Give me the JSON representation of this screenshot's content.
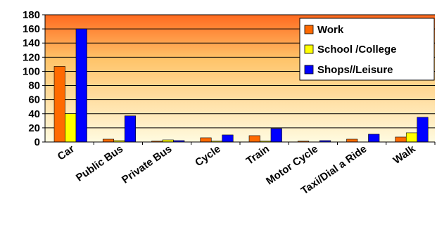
{
  "chart_data": {
    "type": "bar",
    "categories": [
      "Car",
      "Public Bus",
      "Private Bus",
      "Cycle",
      "Train",
      "Motor Cycle",
      "Taxi/Dial a Ride",
      "Walk"
    ],
    "series": [
      {
        "name": "Work",
        "color": "#ff6a00",
        "values": [
          107,
          4,
          1,
          6,
          9,
          1,
          4,
          7
        ]
      },
      {
        "name": "School /College",
        "color": "#ffff00",
        "values": [
          40,
          2,
          3,
          1,
          1,
          0,
          0,
          13
        ]
      },
      {
        "name": "Shops//Leisure",
        "color": "#0000ff",
        "values": [
          160,
          37,
          2,
          10,
          19,
          2,
          11,
          35
        ]
      }
    ],
    "yticks": [
      0,
      20,
      40,
      60,
      80,
      100,
      120,
      140,
      160,
      180
    ],
    "ylim": [
      0,
      180
    ],
    "grid": true,
    "legend_position": "top-right",
    "background_gradient": [
      "#ff6a1f",
      "#fffbe0"
    ]
  }
}
